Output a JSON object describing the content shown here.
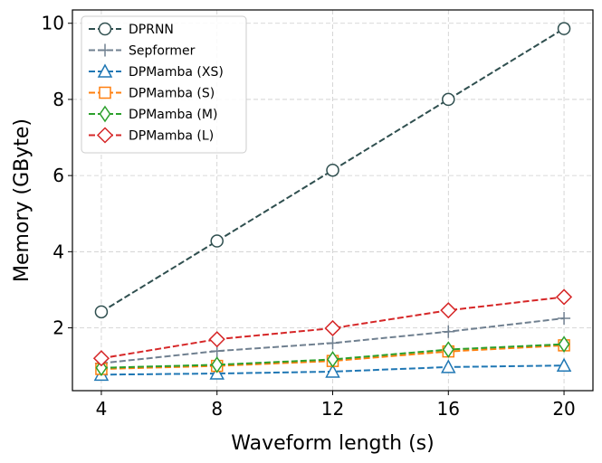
{
  "chart_data": {
    "type": "line",
    "title": "",
    "xlabel": "Waveform length (s)",
    "ylabel": "Memory (GByte)",
    "x": [
      4,
      8,
      12,
      16,
      20
    ],
    "xticks": [
      "4",
      "8",
      "12",
      "16",
      "20"
    ],
    "xlim": [
      3,
      21
    ],
    "yticks": [
      "2",
      "4",
      "6",
      "8",
      "10"
    ],
    "ylim": [
      0.35,
      10.35
    ],
    "grid": true,
    "legend_position": "top-left",
    "series": [
      {
        "name": "DPRNN",
        "values": [
          2.42,
          4.28,
          6.14,
          8.0,
          9.86
        ],
        "color": "#2f4f4f",
        "marker": "circle",
        "filled": false
      },
      {
        "name": "Sepformer",
        "values": [
          1.07,
          1.39,
          1.6,
          1.9,
          2.25
        ],
        "color": "#708090",
        "marker": "plus",
        "filled": false
      },
      {
        "name": "DPMamba (XS)",
        "values": [
          0.77,
          0.8,
          0.85,
          0.97,
          1.01
        ],
        "color": "#1f77b4",
        "marker": "triangle",
        "filled": false
      },
      {
        "name": "DPMamba (S)",
        "values": [
          0.92,
          1.0,
          1.13,
          1.38,
          1.54
        ],
        "color": "#ff7f0e",
        "marker": "square",
        "filled": false
      },
      {
        "name": "DPMamba (M)",
        "values": [
          0.95,
          1.03,
          1.17,
          1.43,
          1.57
        ],
        "color": "#2ca02c",
        "marker": "diamond",
        "filled": false
      },
      {
        "name": "DPMamba (L)",
        "values": [
          1.2,
          1.7,
          1.99,
          2.46,
          2.81
        ],
        "color": "#d62728",
        "marker": "diamond-large",
        "filled": false
      }
    ]
  }
}
